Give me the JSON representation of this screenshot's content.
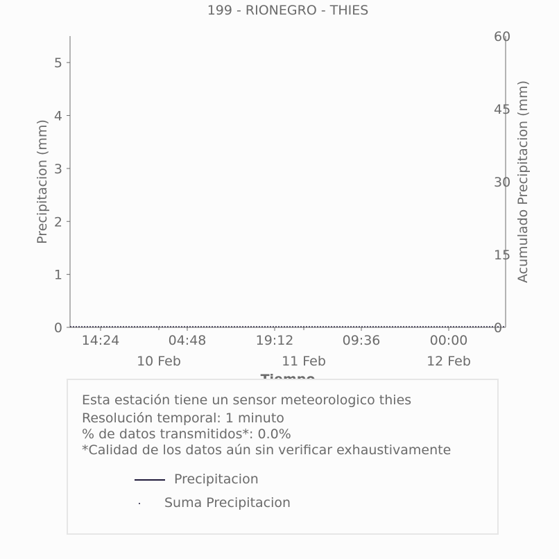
{
  "chart_data": {
    "type": "line",
    "title": "199 - RIONEGRO - THIES",
    "xlabel": "Tiempo",
    "ylabel": "Precipitacion (mm)",
    "y2label": "Acumulado Precipitacion (mm)",
    "ylim": [
      0,
      5.5
    ],
    "y2lim": [
      0,
      60
    ],
    "yticks": [
      "0",
      "1",
      "2",
      "3",
      "4",
      "5"
    ],
    "y2ticks": [
      "0",
      "15",
      "30",
      "45",
      "60"
    ],
    "xticks_time": [
      "14:24",
      "04:48",
      "19:12",
      "09:36",
      "00:00"
    ],
    "xticks_date": [
      "10 Feb",
      "11 Feb",
      "12 Feb"
    ],
    "grid": false,
    "series": [
      {
        "name": "Precipitacion",
        "values": []
      },
      {
        "name": "Suma Precipitacion",
        "values": []
      }
    ],
    "colors": {
      "text": "#6b6b6b",
      "axis": "#6b6b6b",
      "series": "#1f1a3a"
    }
  },
  "info": {
    "line1": "Esta estación tiene un sensor meteorologico thies",
    "line2": "Resolución temporal: 1 minuto",
    "line3": "% de datos transmitidos*: 0.0%",
    "line4": "*Calidad de los datos aún sin verificar exhaustivamente"
  }
}
